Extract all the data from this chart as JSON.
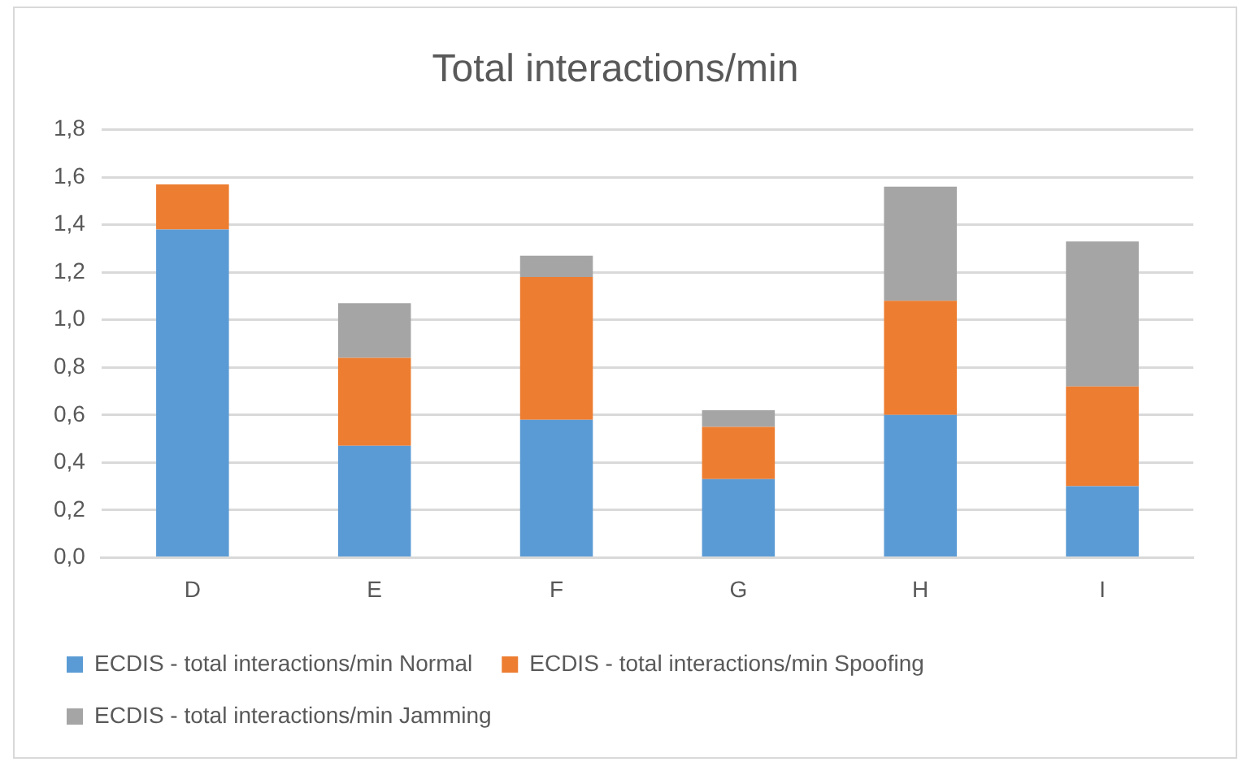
{
  "chart_data": {
    "type": "bar",
    "title": "Total interactions/min",
    "stacked": true,
    "categories": [
      "D",
      "E",
      "F",
      "G",
      "H",
      "I"
    ],
    "series": [
      {
        "name": "ECDIS - total interactions/min Normal",
        "color": "#5b9bd5",
        "values": [
          1.38,
          0.47,
          0.58,
          0.33,
          0.6,
          0.3
        ]
      },
      {
        "name": "ECDIS - total interactions/min Spoofing",
        "color": "#ed7d31",
        "values": [
          0.19,
          0.37,
          0.6,
          0.22,
          0.48,
          0.42
        ]
      },
      {
        "name": "ECDIS - total interactions/min Jamming",
        "color": "#a5a5a5",
        "values": [
          0,
          0.23,
          0.09,
          0.07,
          0.48,
          0.61
        ]
      }
    ],
    "ylim": [
      0,
      1.8
    ],
    "yticks": [
      {
        "value": 0,
        "label": "0,0"
      },
      {
        "value": 0.2,
        "label": "0,2"
      },
      {
        "value": 0.4,
        "label": "0,4"
      },
      {
        "value": 0.6,
        "label": "0,6"
      },
      {
        "value": 0.8,
        "label": "0,8"
      },
      {
        "value": 1,
        "label": "1,0"
      },
      {
        "value": 1.2,
        "label": "1,2"
      },
      {
        "value": 1.4,
        "label": "1,4"
      },
      {
        "value": 1.6,
        "label": "1,6"
      },
      {
        "value": 1.8,
        "label": "1,8"
      }
    ],
    "grid": "y",
    "legend": "bottom"
  }
}
